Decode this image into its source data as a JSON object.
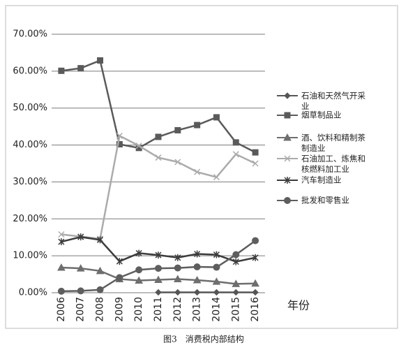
{
  "chart_data": {
    "type": "line",
    "caption": "图3　消费税内部结构",
    "x_label": "年份",
    "categories": [
      "2006",
      "2007",
      "2008",
      "2009",
      "2010",
      "2011",
      "2012",
      "2013",
      "2014",
      "2015",
      "2016"
    ],
    "ylim": [
      0,
      70
    ],
    "yticks": [
      {
        "value": 0,
        "label": "0.00%"
      },
      {
        "value": 10,
        "label": "10.00%"
      },
      {
        "value": 20,
        "label": "20.00%"
      },
      {
        "value": 30,
        "label": "30.00%"
      },
      {
        "value": 40,
        "label": "40.00%"
      },
      {
        "value": 50,
        "label": "50.00%"
      },
      {
        "value": 60,
        "label": "60.00%"
      },
      {
        "value": 70,
        "label": "70.00%"
      }
    ],
    "grid": true,
    "legend": "right",
    "series": [
      {
        "name": "石油和天然气开采业",
        "color": "#555555",
        "marker": "diamond",
        "values": [
          null,
          null,
          null,
          null,
          null,
          0.1,
          0.1,
          0.1,
          0.1,
          0.1,
          0.1
        ]
      },
      {
        "name": "烟草制品业",
        "color": "#5a5a5a",
        "marker": "square",
        "values": [
          60.1,
          60.8,
          62.9,
          40.2,
          39.2,
          42.2,
          44.0,
          45.4,
          47.5,
          40.7,
          38.0
        ]
      },
      {
        "name": "酒、饮料和精制茶制造业",
        "color": "#6e6e6e",
        "marker": "triangle",
        "values": [
          6.8,
          6.6,
          5.9,
          3.7,
          3.3,
          3.5,
          3.7,
          3.4,
          3.0,
          2.4,
          2.5
        ]
      },
      {
        "name": "石油加工、炼焦和核燃料加工业",
        "color": "#ababab",
        "marker": "x",
        "values": [
          15.8,
          15.2,
          14.6,
          42.5,
          39.8,
          36.6,
          35.4,
          32.7,
          31.3,
          37.5,
          35.0
        ]
      },
      {
        "name": "汽车制造业",
        "color": "#3c3c3c",
        "marker": "star",
        "values": [
          13.8,
          15.1,
          14.3,
          8.5,
          10.7,
          10.2,
          9.5,
          10.5,
          10.3,
          8.4,
          9.5
        ]
      },
      {
        "name": "批发和零售业",
        "color": "#5e5e5e",
        "marker": "circle",
        "values": [
          0.4,
          0.5,
          0.8,
          4.1,
          6.2,
          6.6,
          6.7,
          7.0,
          6.9,
          10.3,
          14.1
        ]
      }
    ]
  }
}
